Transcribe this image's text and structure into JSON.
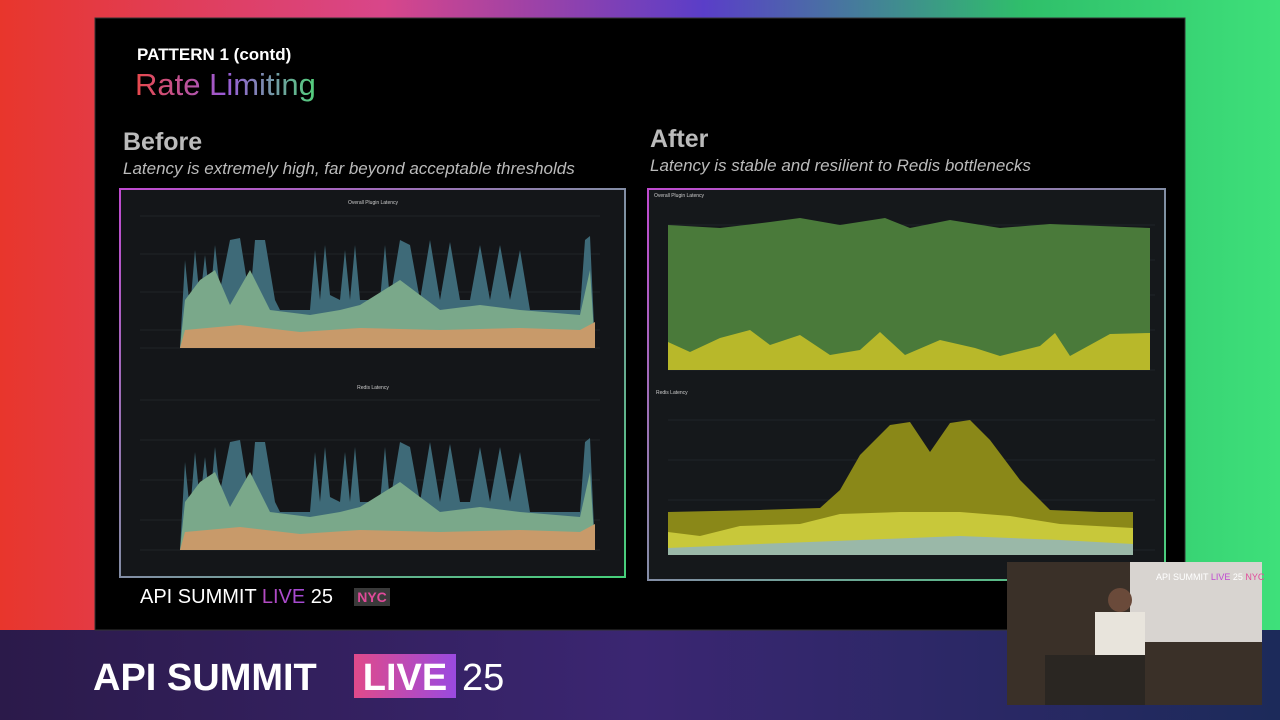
{
  "slide": {
    "kicker": "PATTERN 1 (contd)",
    "title": "Rate Limiting",
    "before": {
      "heading": "Before",
      "caption": "Latency is extremely high, far beyond acceptable thresholds",
      "charts": [
        "Overall Plugin Latency",
        "Redis Latency"
      ]
    },
    "after": {
      "heading": "After",
      "caption": "Latency is stable and resilient to Redis bottlenecks",
      "charts": [
        "Overall Plugin Latency",
        "Redis Latency"
      ]
    },
    "footer": {
      "brand": "API SUMMIT",
      "live": "LIVE",
      "year": "25",
      "city": "NYC"
    }
  },
  "banner": {
    "brand": "API SUMMIT",
    "live": "LIVE",
    "year": "25"
  },
  "inset": {
    "brand": "API SUMMIT",
    "live": "LIVE",
    "year": "25",
    "city": "NYC"
  }
}
